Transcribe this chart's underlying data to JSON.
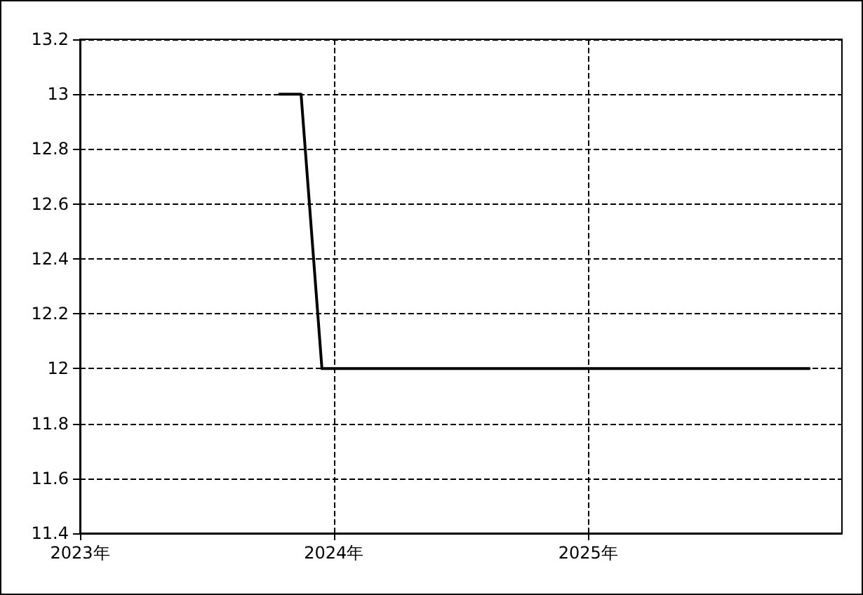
{
  "chart_data": {
    "type": "line",
    "x": [
      "2023-10-15",
      "2023-11-15",
      "2023-12-15",
      "2025-11-15"
    ],
    "series": [
      {
        "color": "#000000",
        "values": [
          13,
          13,
          12,
          12
        ]
      }
    ],
    "xlim": [
      "2023-01-01",
      "2026-01-01"
    ],
    "xticks": [
      {
        "value": "2023-01-01",
        "label": "2023年"
      },
      {
        "value": "2024-01-01",
        "label": "2024年"
      },
      {
        "value": "2025-01-01",
        "label": "2025年"
      }
    ],
    "ylim": [
      11.4,
      13.2
    ],
    "yticks": [
      11.4,
      11.6,
      11.8,
      12,
      12.2,
      12.4,
      12.6,
      12.8,
      13,
      13.2
    ],
    "grid": true,
    "marker": "none",
    "line_style": "solid"
  }
}
